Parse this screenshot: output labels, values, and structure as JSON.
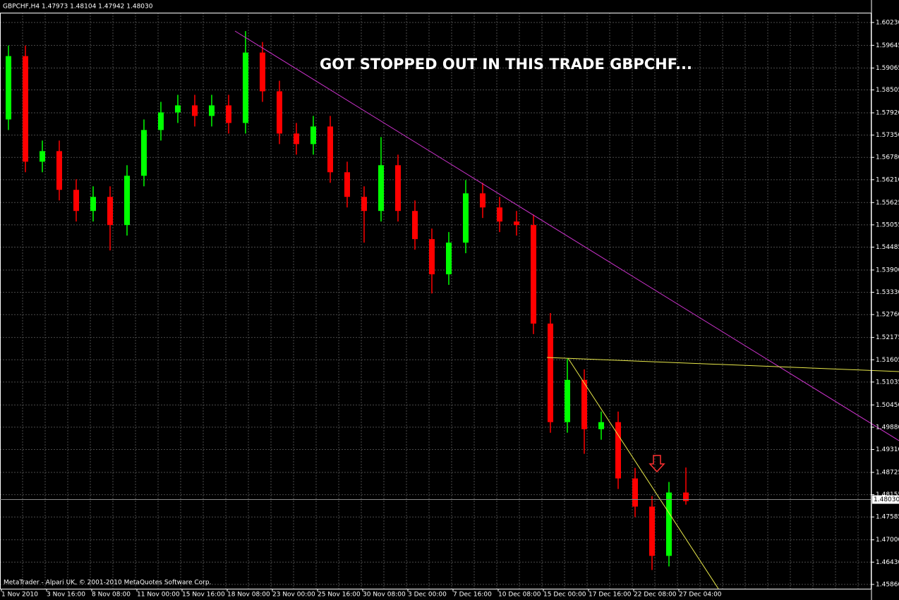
{
  "chart_data": {
    "type": "candlestick",
    "title": "GBPCHF,H4  1.47973 1.48104 1.47942 1.48030",
    "annotation": "GOT STOPPED OUT IN THIS TRADE GBPCHF...",
    "footer": "MetaTrader - Alpari UK, © 2001-2010 MetaQuotes Software Corp.",
    "up_color": "#00ff00",
    "down_color": "#ff0000",
    "grid": true,
    "ylim": [
      1.4575,
      1.6048
    ],
    "yticks": [
      {
        "value": 1.6023,
        "label": "1.60230"
      },
      {
        "value": 1.59645,
        "label": "1.59645"
      },
      {
        "value": 1.59065,
        "label": "1.59065"
      },
      {
        "value": 1.58505,
        "label": "1.58505"
      },
      {
        "value": 1.5792,
        "label": "1.57920"
      },
      {
        "value": 1.5735,
        "label": "1.57350"
      },
      {
        "value": 1.5678,
        "label": "1.56780"
      },
      {
        "value": 1.5621,
        "label": "1.56210"
      },
      {
        "value": 1.55625,
        "label": "1.55625"
      },
      {
        "value": 1.55055,
        "label": "1.55055"
      },
      {
        "value": 1.54485,
        "label": "1.54485"
      },
      {
        "value": 1.539,
        "label": "1.53900"
      },
      {
        "value": 1.5333,
        "label": "1.53330"
      },
      {
        "value": 1.5276,
        "label": "1.52760"
      },
      {
        "value": 1.52175,
        "label": "1.52175"
      },
      {
        "value": 1.51605,
        "label": "1.51605"
      },
      {
        "value": 1.51035,
        "label": "1.51035"
      },
      {
        "value": 1.5045,
        "label": "1.50450"
      },
      {
        "value": 1.4988,
        "label": "1.49880"
      },
      {
        "value": 1.4931,
        "label": "1.49310"
      },
      {
        "value": 1.48725,
        "label": "1.48725"
      },
      {
        "value": 1.48155,
        "label": "1.48155"
      },
      {
        "value": 1.47585,
        "label": "1.47585"
      },
      {
        "value": 1.47,
        "label": "1.47000"
      },
      {
        "value": 1.4643,
        "label": "1.46430"
      },
      {
        "value": 1.4586,
        "label": "1.45860"
      }
    ],
    "price_line": {
      "value": 1.4803,
      "label": "1.48030"
    },
    "x_labels": [
      "1 Nov 2010",
      "3 Nov 16:00",
      "8 Nov 08:00",
      "11 Nov 00:00",
      "15 Nov 16:00",
      "18 Nov 08:00",
      "23 Nov 00:00",
      "25 Nov 16:00",
      "30 Nov 08:00",
      "3 Dec 00:00",
      "7 Dec 16:00",
      "10 Dec 08:00",
      "15 Dec 00:00",
      "17 Dec 16:00",
      "22 Dec 08:00",
      "27 Dec 04:00"
    ],
    "open": [
      1.5775,
      1.5937,
      1.5667,
      1.5694,
      1.5595,
      1.5541,
      1.5577,
      1.5505,
      1.5631,
      1.5748,
      1.5793,
      1.5811,
      1.5784,
      1.5811,
      1.5766,
      1.5946,
      1.5847,
      1.5739,
      1.5712,
      1.5757,
      1.564,
      1.5577,
      1.5541,
      1.5658,
      1.5541,
      1.5469,
      1.5379,
      1.546,
      1.5586,
      1.555,
      1.5514,
      1.5505,
      1.5253,
      1.5001,
      1.5109,
      1.4983,
      1.5001,
      1.4857,
      1.4785,
      1.4659,
      1.4821
    ],
    "high": [
      1.5964,
      1.5964,
      1.5721,
      1.5721,
      1.5622,
      1.5604,
      1.5604,
      1.5658,
      1.5775,
      1.582,
      1.5838,
      1.5838,
      1.5838,
      1.5838,
      1.6001,
      1.5973,
      1.5874,
      1.5766,
      1.5784,
      1.5784,
      1.5667,
      1.5604,
      1.573,
      1.5685,
      1.5568,
      1.5496,
      1.5487,
      1.562,
      1.5613,
      1.5577,
      1.5541,
      1.5532,
      1.528,
      1.5163,
      1.5136,
      1.5028,
      1.5028,
      1.4884,
      1.4812,
      1.4848,
      1.4885
    ],
    "low": [
      1.5748,
      1.564,
      1.564,
      1.5568,
      1.5514,
      1.5514,
      1.544,
      1.5478,
      1.5604,
      1.5721,
      1.5766,
      1.5757,
      1.5757,
      1.5739,
      1.5739,
      1.582,
      1.5712,
      1.5685,
      1.5685,
      1.5613,
      1.555,
      1.546,
      1.5514,
      1.5514,
      1.5442,
      1.533,
      1.5352,
      1.5433,
      1.5523,
      1.5487,
      1.5478,
      1.5226,
      1.4974,
      1.4974,
      1.492,
      1.4956,
      1.483,
      1.4758,
      1.4623,
      1.4632,
      1.479
    ],
    "close": [
      1.5937,
      1.5667,
      1.5694,
      1.5595,
      1.5541,
      1.5577,
      1.5505,
      1.5631,
      1.5748,
      1.5793,
      1.5811,
      1.5784,
      1.5811,
      1.5766,
      1.5946,
      1.5847,
      1.5739,
      1.5712,
      1.5757,
      1.564,
      1.5577,
      1.5541,
      1.5658,
      1.5541,
      1.5469,
      1.5379,
      1.546,
      1.5586,
      1.555,
      1.5514,
      1.5505,
      1.5253,
      1.5001,
      1.5109,
      1.4983,
      1.5001,
      1.4857,
      1.4785,
      1.4659,
      1.4821,
      1.4799
    ]
  }
}
